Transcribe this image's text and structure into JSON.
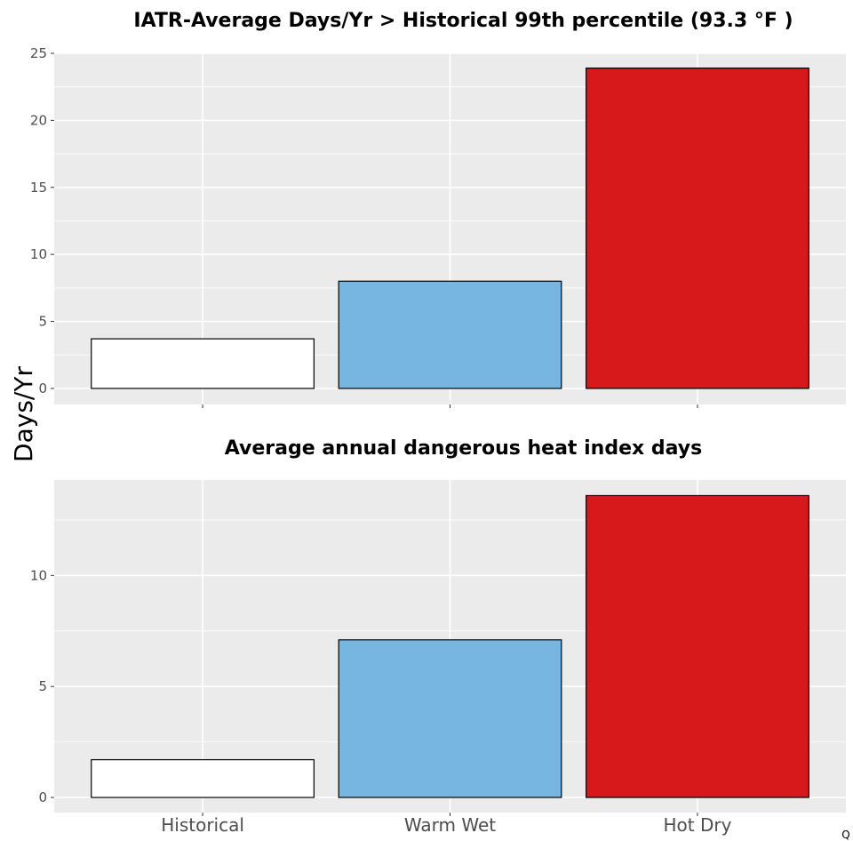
{
  "figure": {
    "ylabel": "Days/Yr",
    "corner_mark": "Q"
  },
  "colors": {
    "panel_bg": "#ebebeb",
    "grid": "#ffffff",
    "bar_outline": "#000000"
  },
  "chart_data": [
    {
      "type": "bar",
      "title": "IATR-Average Days/Yr > Historical 99th percentile (93.3 °F )",
      "categories": [
        "Historical",
        "Warm Wet",
        "Hot Dry"
      ],
      "values": [
        3.7,
        8.0,
        23.9
      ],
      "colors": [
        "#ffffff",
        "#76b6e0",
        "#d7191c"
      ],
      "ylabel": "Days/Yr",
      "xlabel": "",
      "ylim": [
        -1.2,
        25
      ],
      "yticks": [
        0,
        5,
        10,
        15,
        20,
        25
      ],
      "show_x_tick_labels": false,
      "grid": true
    },
    {
      "type": "bar",
      "title": "Average annual dangerous heat index days",
      "categories": [
        "Historical",
        "Warm Wet",
        "Hot Dry"
      ],
      "values": [
        1.7,
        7.1,
        13.6
      ],
      "colors": [
        "#ffffff",
        "#76b6e0",
        "#d7191c"
      ],
      "ylabel": "Days/Yr",
      "xlabel": "",
      "ylim": [
        -0.68,
        14.3
      ],
      "yticks": [
        0,
        5,
        10
      ],
      "show_x_tick_labels": true,
      "grid": true
    }
  ]
}
